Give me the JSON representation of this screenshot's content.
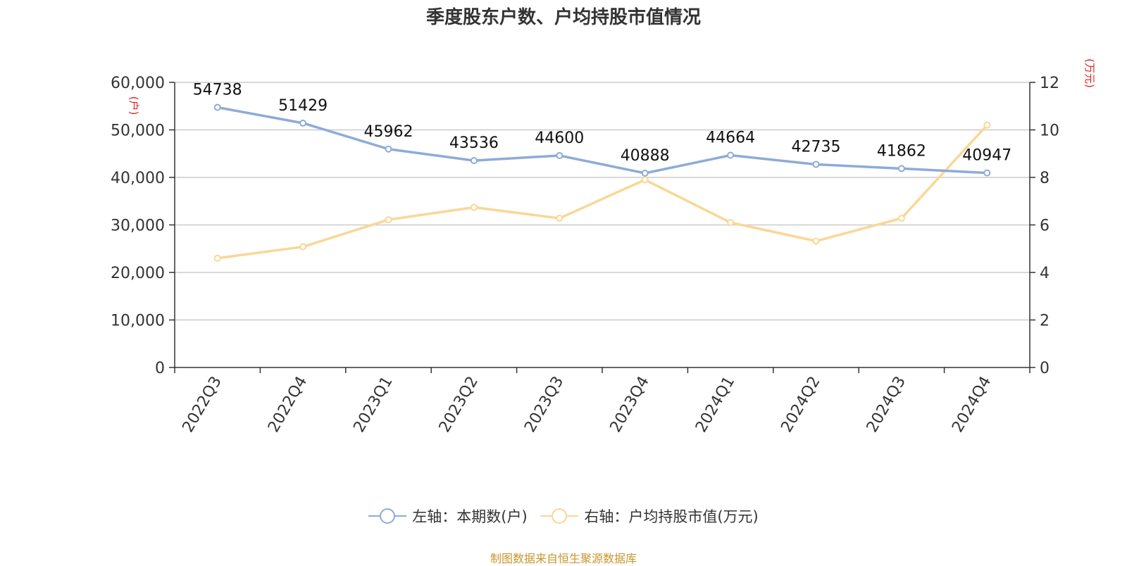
{
  "chart_data": {
    "type": "line",
    "title": "季度股东户数、户均持股市值情况",
    "categories": [
      "2022Q3",
      "2022Q4",
      "2023Q1",
      "2023Q2",
      "2023Q3",
      "2023Q4",
      "2024Q1",
      "2024Q2",
      "2024Q3",
      "2024Q4"
    ],
    "left_axis": {
      "unit_label": "(户)",
      "ylim": [
        0,
        60000
      ],
      "ticks": [
        "0",
        "10,000",
        "20,000",
        "30,000",
        "40,000",
        "50,000",
        "60,000"
      ]
    },
    "right_axis": {
      "unit_label": "(万元)",
      "ylim": [
        0,
        12
      ],
      "ticks": [
        "0",
        "2",
        "4",
        "6",
        "8",
        "10",
        "12"
      ]
    },
    "series": [
      {
        "name": "左轴：本期数(户)",
        "axis": "left",
        "color": "#8eabd8",
        "values": [
          54738,
          51429,
          45962,
          43536,
          44600,
          40888,
          44664,
          42735,
          41862,
          40947
        ],
        "labels": [
          "54738",
          "51429",
          "45962",
          "43536",
          "44600",
          "40888",
          "44664",
          "42735",
          "41862",
          "40947"
        ]
      },
      {
        "name": "右轴：户均持股市值(万元)",
        "axis": "right",
        "color": "#f9d796",
        "values": [
          4.6,
          5.08,
          6.22,
          6.74,
          6.28,
          7.9,
          6.1,
          5.32,
          6.28,
          10.2
        ]
      }
    ],
    "grid": true,
    "legend_position": "bottom-center",
    "unit_color": "#e02020"
  },
  "source": {
    "text": "制图数据来自恒生聚源数据库",
    "color": "#c8962c"
  }
}
